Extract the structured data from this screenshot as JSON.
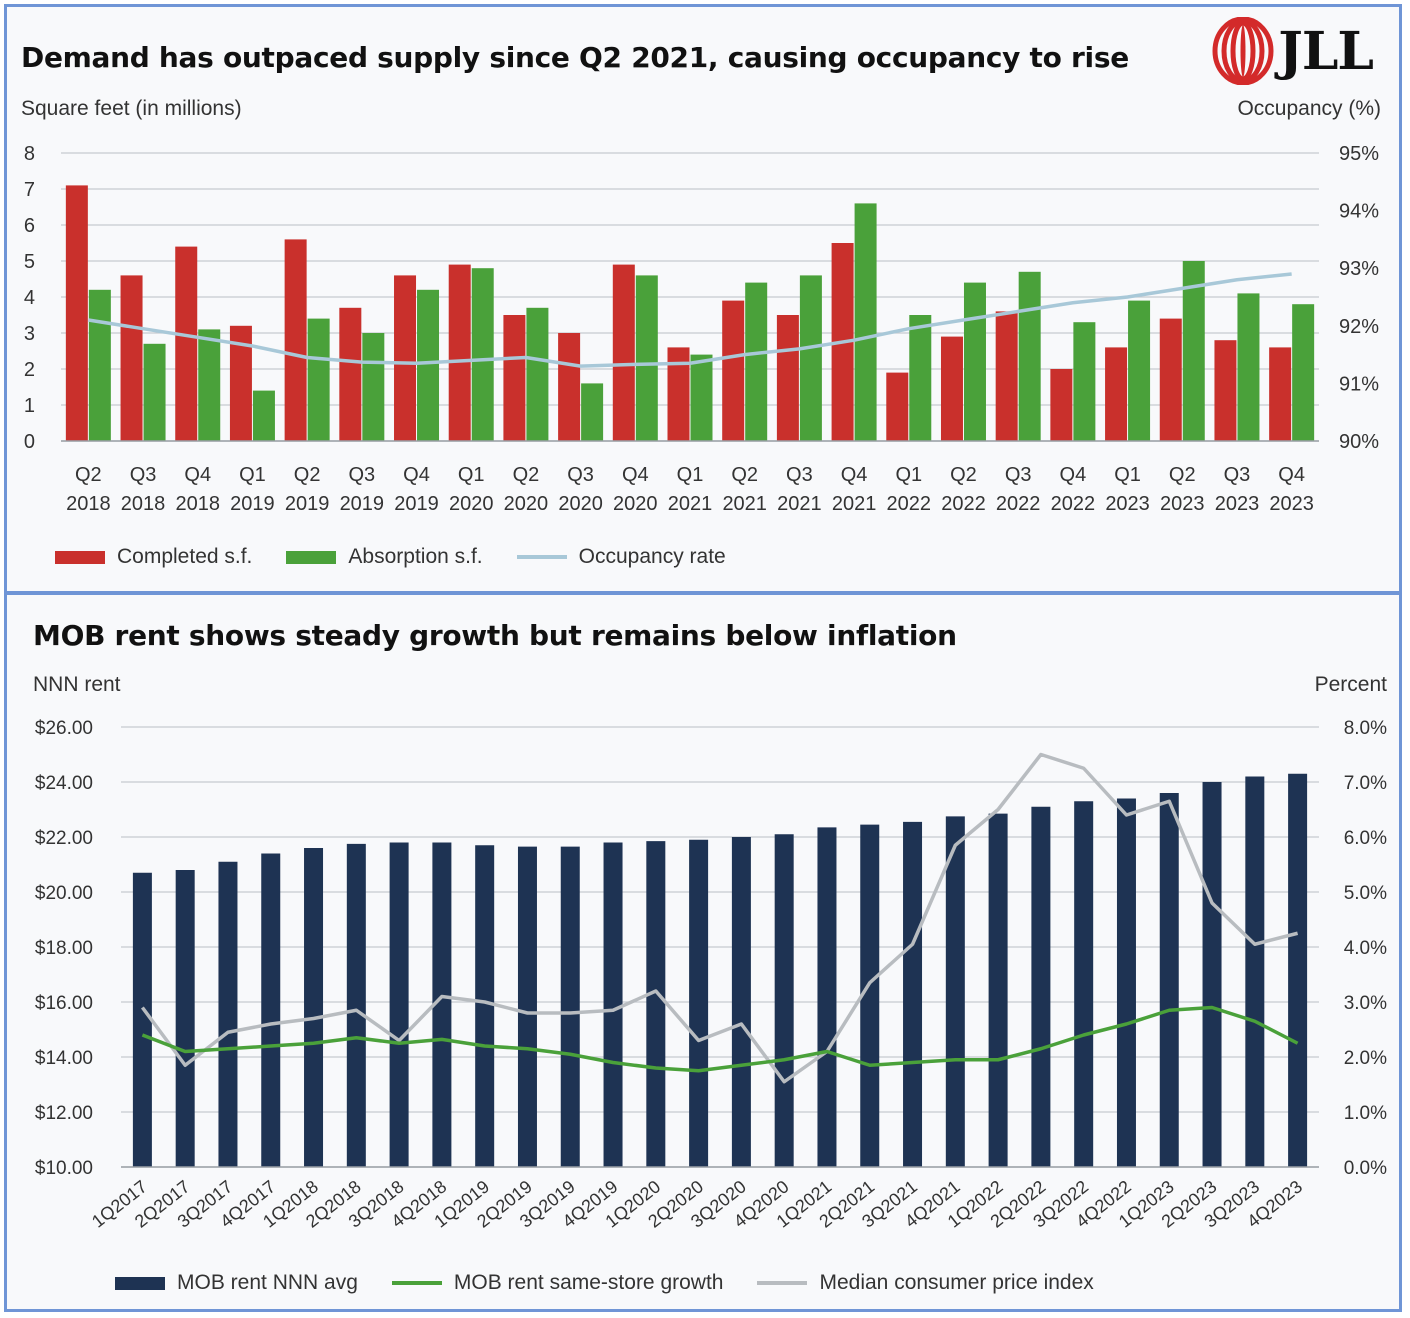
{
  "top": {
    "title": "Demand has outpaced supply since Q2 2021, causing occupancy to rise",
    "logo_text": "JLL",
    "left_axis_title": "Square feet (in millions)",
    "right_axis_title": "Occupancy (%)",
    "legend": [
      {
        "label": "Completed s.f.",
        "color": "#c9302c",
        "kind": "bar"
      },
      {
        "label": "Absorption s.f.",
        "color": "#4aa13a",
        "kind": "bar"
      },
      {
        "label": "Occupancy rate",
        "color": "#a8c8d8",
        "kind": "line"
      }
    ],
    "chart_data": {
      "type": "bar",
      "categories": [
        "Q2 2018",
        "Q3 2018",
        "Q4 2018",
        "Q1 2019",
        "Q2 2019",
        "Q3 2019",
        "Q4 2019",
        "Q1 2020",
        "Q2 2020",
        "Q3 2020",
        "Q4 2020",
        "Q1 2021",
        "Q2 2021",
        "Q3 2021",
        "Q4 2021",
        "Q1 2022",
        "Q2 2022",
        "Q3 2022",
        "Q4 2022",
        "Q1 2023",
        "Q2 2023",
        "Q3 2023",
        "Q4 2023"
      ],
      "series": [
        {
          "name": "Completed s.f.",
          "axis": "left",
          "color": "#c9302c",
          "values": [
            7.1,
            4.6,
            5.4,
            3.2,
            5.6,
            3.7,
            4.6,
            4.9,
            3.5,
            3.0,
            4.9,
            2.6,
            3.9,
            3.5,
            5.5,
            1.9,
            2.9,
            3.6,
            2.0,
            2.6,
            3.4,
            2.8,
            2.6
          ]
        },
        {
          "name": "Absorption s.f.",
          "axis": "left",
          "color": "#4aa13a",
          "values": [
            4.2,
            2.7,
            3.1,
            1.4,
            3.4,
            3.0,
            4.2,
            4.8,
            3.7,
            1.6,
            4.6,
            2.4,
            4.4,
            4.6,
            6.6,
            3.5,
            4.4,
            4.7,
            3.3,
            3.9,
            5.0,
            4.1,
            3.8
          ]
        },
        {
          "name": "Occupancy rate",
          "axis": "right",
          "type": "line",
          "color": "#a8c8d8",
          "values": [
            92.1,
            91.95,
            91.8,
            91.65,
            91.45,
            91.37,
            91.35,
            91.4,
            91.45,
            91.3,
            91.33,
            91.35,
            91.5,
            91.6,
            91.75,
            91.95,
            92.1,
            92.25,
            92.4,
            92.5,
            92.65,
            92.8,
            92.9
          ]
        }
      ],
      "left_axis": {
        "min": 0,
        "max": 8,
        "ticks": [
          "0",
          "1",
          "2",
          "3",
          "4",
          "5",
          "6",
          "7",
          "8"
        ]
      },
      "right_axis": {
        "min": 90,
        "max": 95,
        "ticks": [
          "90%",
          "91%",
          "92%",
          "93%",
          "94%",
          "95%"
        ]
      },
      "grid": true,
      "legend_position": "bottom-left"
    }
  },
  "bottom": {
    "title": "MOB rent shows steady growth but remains below inflation",
    "left_axis_title": "NNN rent",
    "right_axis_title": "Percent",
    "legend": [
      {
        "label": "MOB rent NNN avg",
        "color": "#1e3353",
        "kind": "bar"
      },
      {
        "label": "MOB rent same-store growth",
        "color": "#4aa13a",
        "kind": "line"
      },
      {
        "label": "Median consumer price index",
        "color": "#b8bcc0",
        "kind": "line"
      }
    ],
    "chart_data": {
      "type": "bar",
      "categories": [
        "1Q2017",
        "2Q2017",
        "3Q2017",
        "4Q2017",
        "1Q2018",
        "2Q2018",
        "3Q2018",
        "4Q2018",
        "1Q2019",
        "2Q2019",
        "3Q2019",
        "4Q2019",
        "1Q2020",
        "2Q2020",
        "3Q2020",
        "4Q2020",
        "1Q2021",
        "2Q2021",
        "3Q2021",
        "4Q2021",
        "1Q2022",
        "2Q2022",
        "3Q2022",
        "4Q2022",
        "1Q2023",
        "2Q2023",
        "3Q2023",
        "4Q2023"
      ],
      "series": [
        {
          "name": "MOB rent NNN avg",
          "axis": "left",
          "color": "#1e3353",
          "values": [
            20.7,
            20.8,
            21.1,
            21.4,
            21.6,
            21.75,
            21.8,
            21.8,
            21.7,
            21.65,
            21.65,
            21.8,
            21.85,
            21.9,
            22.0,
            22.1,
            22.35,
            22.45,
            22.55,
            22.75,
            22.85,
            23.1,
            23.3,
            23.4,
            23.6,
            24.0,
            24.2,
            24.3
          ]
        },
        {
          "name": "MOB rent same-store growth",
          "axis": "right",
          "type": "line",
          "color": "#4aa13a",
          "values": [
            2.4,
            2.1,
            2.15,
            2.2,
            2.25,
            2.35,
            2.25,
            2.32,
            2.2,
            2.15,
            2.05,
            1.9,
            1.8,
            1.75,
            1.85,
            1.95,
            2.1,
            1.85,
            1.9,
            1.95,
            1.95,
            2.15,
            2.4,
            2.6,
            2.85,
            2.9,
            2.65,
            2.25
          ]
        },
        {
          "name": "Median consumer price index",
          "axis": "right",
          "type": "line",
          "color": "#b8bcc0",
          "values": [
            2.9,
            1.85,
            2.45,
            2.6,
            2.7,
            2.85,
            2.3,
            3.1,
            3.0,
            2.8,
            2.8,
            2.85,
            3.2,
            2.3,
            2.6,
            1.55,
            2.1,
            3.35,
            4.05,
            5.85,
            6.5,
            7.5,
            7.25,
            6.4,
            6.65,
            4.8,
            4.05,
            4.25
          ]
        }
      ],
      "left_axis": {
        "min": 10,
        "max": 26,
        "ticks": [
          "$10.00",
          "$12.00",
          "$14.00",
          "$16.00",
          "$18.00",
          "$20.00",
          "$22.00",
          "$24.00",
          "$26.00"
        ]
      },
      "right_axis": {
        "min": 0,
        "max": 8,
        "ticks": [
          "0.0%",
          "1.0%",
          "2.0%",
          "3.0%",
          "4.0%",
          "5.0%",
          "6.0%",
          "7.0%",
          "8.0%"
        ]
      },
      "grid": true,
      "legend_position": "bottom-left"
    }
  }
}
